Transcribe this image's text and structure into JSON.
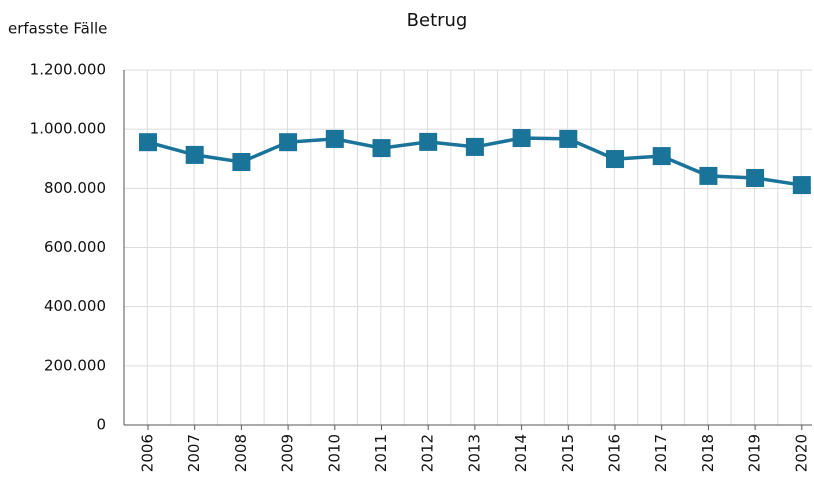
{
  "chart_data": {
    "type": "line",
    "title": "Betrug",
    "y_label": "erfasste Fälle",
    "categories": [
      "2006",
      "2007",
      "2008",
      "2009",
      "2010",
      "2011",
      "2012",
      "2013",
      "2014",
      "2015",
      "2016",
      "2017",
      "2018",
      "2019",
      "2020"
    ],
    "series": [
      {
        "name": "Betrug",
        "color": "#1a7399",
        "values": [
          956000,
          913000,
          889000,
          956000,
          967000,
          936000,
          957000,
          940000,
          970000,
          967000,
          899000,
          909000,
          842000,
          835000,
          811000
        ]
      }
    ],
    "ylim": [
      0,
      1200000
    ],
    "yticks": [
      0,
      {
        "value": 200000,
        "label": "200.000"
      },
      {
        "value": 400000,
        "label": "400.000"
      },
      {
        "value": 600000,
        "label": "600.000"
      },
      {
        "value": 800000,
        "label": "800.000"
      },
      {
        "value": 1000000,
        "label": "1.000.000"
      },
      {
        "value": 1200000,
        "label": "1.200.000"
      }
    ],
    "grid": true
  }
}
